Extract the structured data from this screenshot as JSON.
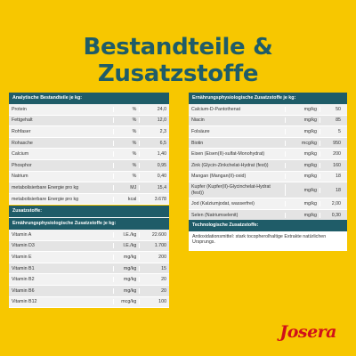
{
  "title": "Bestandteile & Zusatzstoffe",
  "analytic": {
    "header": "Analytische Bestandteile je kg:",
    "rows": [
      {
        "name": "Protein",
        "unit": "%",
        "value": "24,0"
      },
      {
        "name": "Fettgehalt",
        "unit": "%",
        "value": "12,0"
      },
      {
        "name": "Rohfaser",
        "unit": "%",
        "value": "2,3"
      },
      {
        "name": "Rohasche",
        "unit": "%",
        "value": "6,5"
      },
      {
        "name": "Calcium",
        "unit": "%",
        "value": "1,40"
      },
      {
        "name": "Phosphor",
        "unit": "%",
        "value": "0,95"
      },
      {
        "name": "Natrium",
        "unit": "%",
        "value": "0,40"
      },
      {
        "name": "metabolisierbare Energie pro kg",
        "unit": "MJ",
        "value": "15,4"
      },
      {
        "name": "metabolisierbare Energie pro kg",
        "unit": "kcal",
        "value": "3.678"
      }
    ]
  },
  "additives": {
    "header": "Zusatzstoffe:",
    "subheader": "Ernährungsphysiologische Zusatzstoffe je kg:",
    "rows": [
      {
        "name": "Vitamin A",
        "unit": "I.E./kg",
        "value": "22.600"
      },
      {
        "name": "Vitamin D3",
        "unit": "I.E./kg",
        "value": "1.700"
      },
      {
        "name": "Vitamin E",
        "unit": "mg/kg",
        "value": "200"
      },
      {
        "name": "Vitamin B1",
        "unit": "mg/kg",
        "value": "15"
      },
      {
        "name": "Vitamin B2",
        "unit": "mg/kg",
        "value": "20"
      },
      {
        "name": "Vitamin B6",
        "unit": "mg/kg",
        "value": "20"
      },
      {
        "name": "Vitamin B12",
        "unit": "mcg/kg",
        "value": "100"
      }
    ]
  },
  "nutritional": {
    "header": "Ernährungsphysiologische Zusatzstoffe je kg:",
    "rows": [
      {
        "name": "Calcium-D-Pantothenat",
        "unit": "mg/kg",
        "value": "50"
      },
      {
        "name": "Niacin",
        "unit": "mg/kg",
        "value": "85"
      },
      {
        "name": "Folsäure",
        "unit": "mg/kg",
        "value": "5"
      },
      {
        "name": "Biotin",
        "unit": "mcg/kg",
        "value": "950"
      },
      {
        "name": "Eisen (Eisen(II)-sulfat-Monohydrat)",
        "unit": "mg/kg",
        "value": "200"
      },
      {
        "name": "Zink (Glycin-Zinkchelat-Hydrat (fest))",
        "unit": "mg/kg",
        "value": "160"
      },
      {
        "name": "Mangan (Mangan(II)-oxid)",
        "unit": "mg/kg",
        "value": "18"
      },
      {
        "name": "Kupfer (Kupfer(II)-Glycinchelat-Hydrat (fest))",
        "unit": "mg/kg",
        "value": "18"
      },
      {
        "name": "Jod (Kalziumjodat, wasserfrei)",
        "unit": "mg/kg",
        "value": "2,00"
      },
      {
        "name": "Selen (Natriumselenit)",
        "unit": "mg/kg",
        "value": "0,30"
      }
    ]
  },
  "technological": {
    "header": "Technologische Zusatzstoffe:",
    "text": "Antioxidationsmittel: stark tocopherolhaltige Extrakte natürlichen Ursprungs."
  },
  "brand": "Josera",
  "colors": {
    "background": "#F7C700",
    "header": "#1F5C68",
    "brand": "#D0101A"
  }
}
